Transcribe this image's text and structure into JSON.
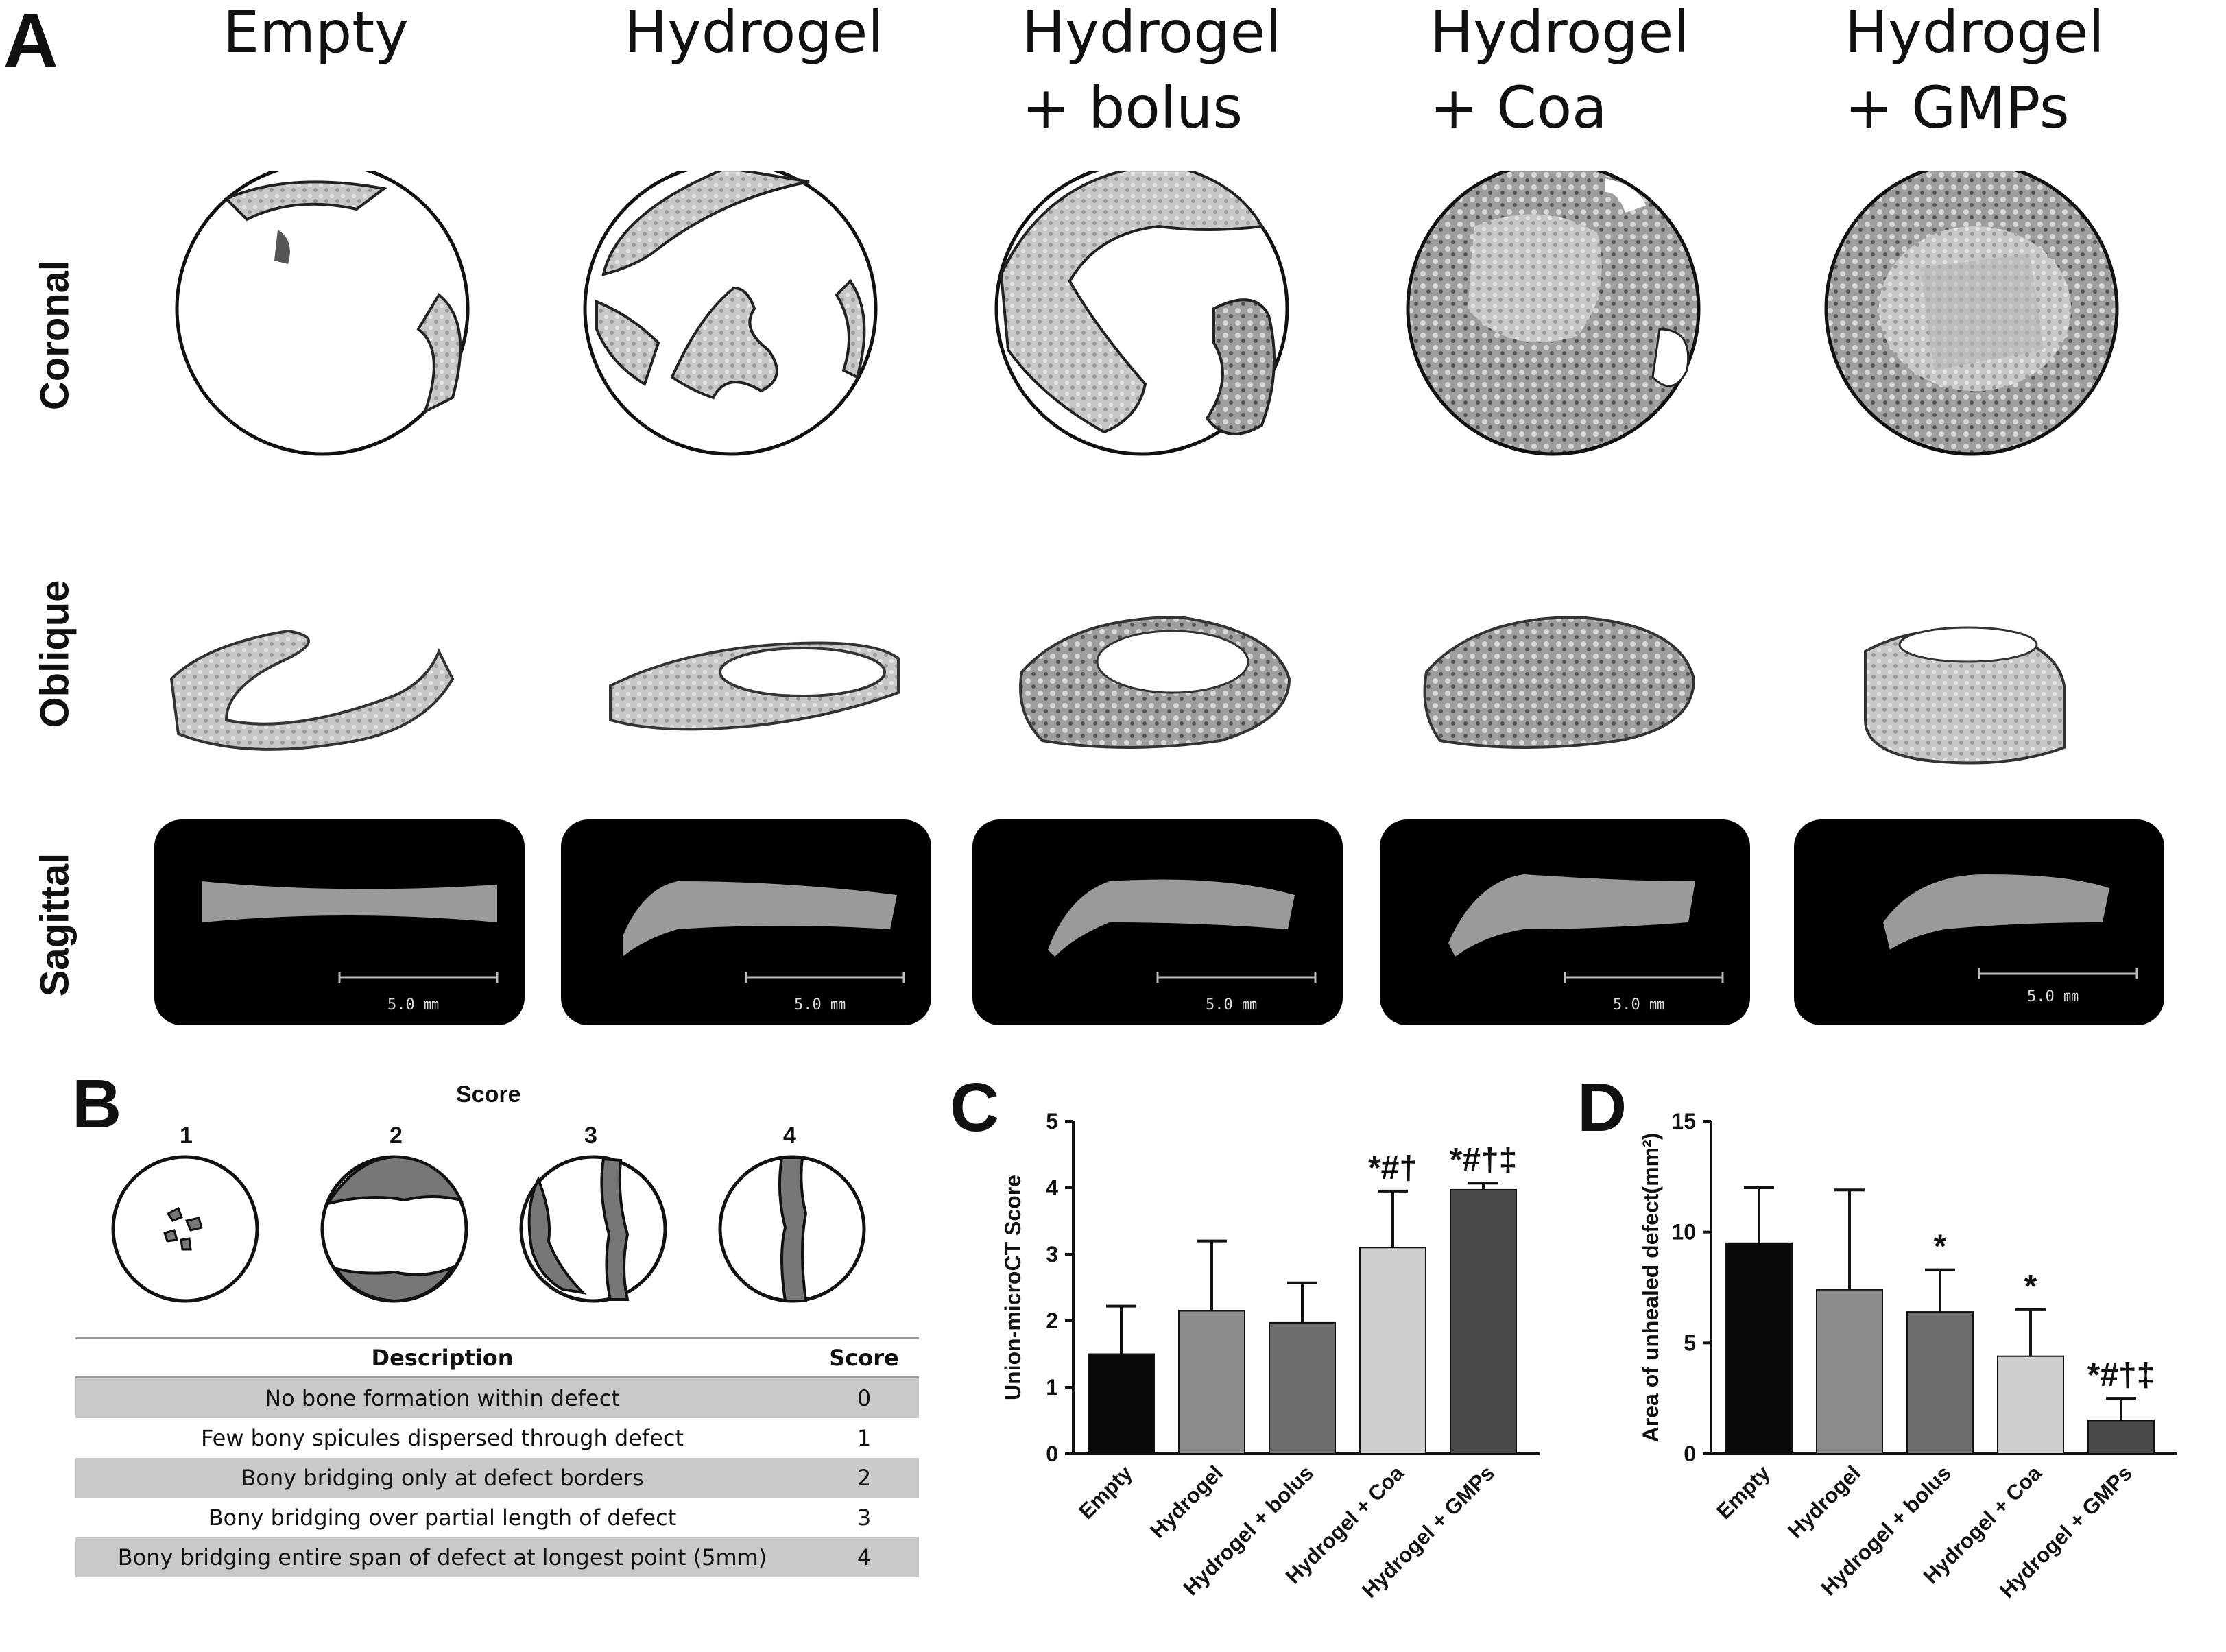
{
  "panel_a": {
    "letter": "A",
    "columns": [
      "Empty",
      "Hydrogel",
      "Hydrogel\n+ bolus",
      "Hydrogel\n+ Coa",
      "Hydrogel\n+ GMPs"
    ],
    "rows": [
      "Coronal",
      "Oblique",
      "Sagittal"
    ],
    "scale_label": "5.0 ㎜"
  },
  "panel_b": {
    "letter": "B",
    "score_title": "Score",
    "score_numbers": [
      "1",
      "2",
      "3",
      "4"
    ],
    "table_header": {
      "description": "Description",
      "score": "Score"
    },
    "rows": [
      {
        "description": "No bone formation within defect",
        "score": "0"
      },
      {
        "description": "Few bony spicules dispersed through defect",
        "score": "1"
      },
      {
        "description": "Bony bridging only at defect borders",
        "score": "2"
      },
      {
        "description": "Bony bridging over partial length of defect",
        "score": "3"
      },
      {
        "description": "Bony bridging entire span of defect at longest point (5mm)",
        "score": "4"
      }
    ]
  },
  "chart_data": [
    {
      "panel": "C",
      "type": "bar",
      "ylabel": "Union-microCT Score",
      "ylim": [
        0,
        5
      ],
      "yticks": [
        0,
        1,
        2,
        3,
        4,
        5
      ],
      "categories": [
        "Empty",
        "Hydrogel",
        "Hydrogel + bolus",
        "Hydrogel + Coa",
        "Hydrogel + GMPs"
      ],
      "values": [
        1.5,
        2.15,
        1.97,
        3.1,
        3.97
      ],
      "errors": [
        0.72,
        1.05,
        0.6,
        0.85,
        0.1
      ],
      "annotations": [
        "",
        "",
        "",
        "*#†",
        "*#†‡"
      ],
      "colors": [
        "#0a0a0a",
        "#8c8c8c",
        "#6e6e6e",
        "#cfcfcf",
        "#4a4a4a"
      ],
      "grid": false
    },
    {
      "panel": "D",
      "type": "bar",
      "ylabel": "Area of unhealed defect(mm²)",
      "ylim": [
        0,
        15
      ],
      "yticks": [
        0,
        5,
        10,
        15
      ],
      "categories": [
        "Empty",
        "Hydrogel",
        "Hydrogel + bolus",
        "Hydrogel + Coa",
        "Hydrogel + GMPs"
      ],
      "values": [
        9.5,
        7.4,
        6.4,
        4.4,
        1.5
      ],
      "errors": [
        2.5,
        4.5,
        1.9,
        2.1,
        1.0
      ],
      "annotations": [
        "",
        "",
        "*",
        "*",
        "*#†‡"
      ],
      "colors": [
        "#0a0a0a",
        "#8c8c8c",
        "#6e6e6e",
        "#cfcfcf",
        "#4a4a4a"
      ],
      "grid": false
    }
  ]
}
